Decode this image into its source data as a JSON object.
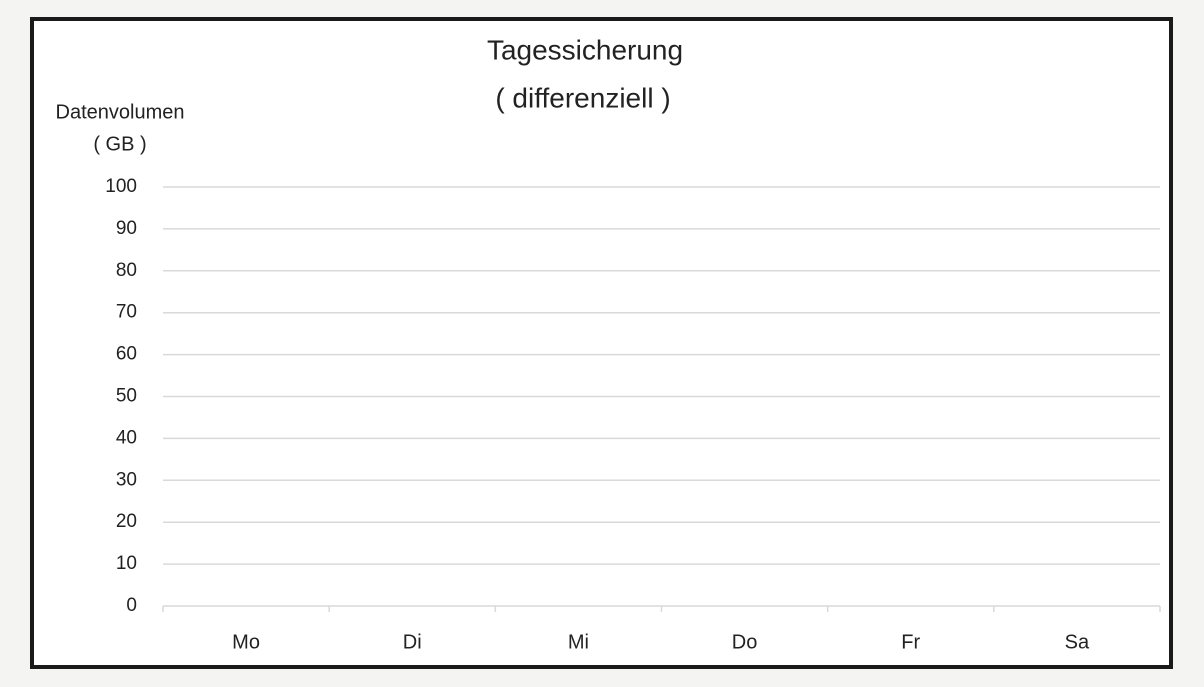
{
  "chart_data": {
    "type": "bar",
    "title": "Tagessicherung",
    "subtitle": "( differenziell )",
    "y_label": "Datenvolumen",
    "y_unit": "( GB )",
    "categories": [
      "Mo",
      "Di",
      "Mi",
      "Do",
      "Fr",
      "Sa"
    ],
    "ylim": [
      0,
      100
    ],
    "yticks": [
      0,
      10,
      20,
      30,
      40,
      50,
      60,
      70,
      80,
      90,
      100
    ],
    "grid": true
  }
}
